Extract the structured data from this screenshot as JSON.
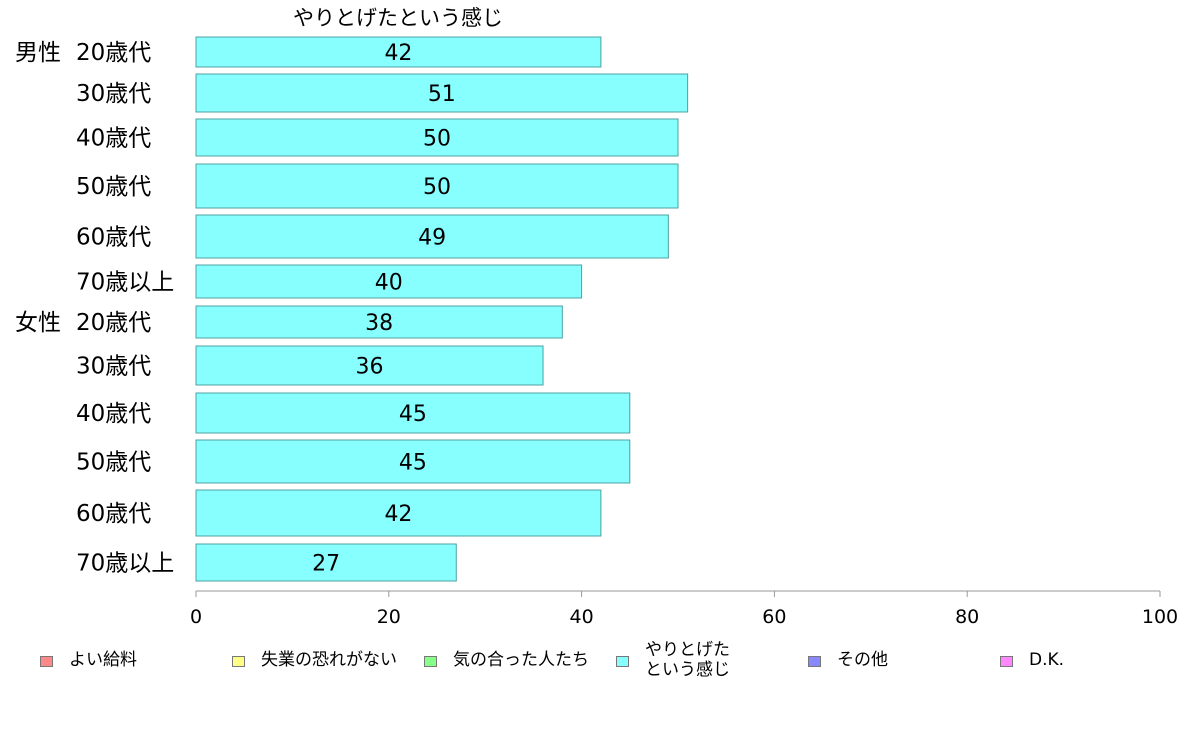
{
  "chart_data": {
    "type": "bar",
    "orientation": "horizontal",
    "title": "やりとげたという感じ",
    "groups": [
      {
        "label": "男性",
        "categories": [
          "20歳代",
          "30歳代",
          "40歳代",
          "50歳代",
          "60歳代",
          "70歳以上"
        ],
        "values": [
          42,
          51,
          50,
          50,
          49,
          40
        ]
      },
      {
        "label": "女性",
        "categories": [
          "20歳代",
          "30歳代",
          "40歳代",
          "50歳代",
          "60歳代",
          "70歳以上"
        ],
        "values": [
          38,
          36,
          45,
          45,
          42,
          27
        ]
      }
    ],
    "xlim": [
      0,
      100
    ],
    "xticks": [
      "0",
      "20",
      "40",
      "60",
      "80",
      "100"
    ],
    "bar_color": "#88ffff",
    "legend_placement": "bottom",
    "legend": [
      {
        "label": "よい給料",
        "color": "#ff8888"
      },
      {
        "label": "失業の恐れがない",
        "color": "#ffff88"
      },
      {
        "label": "気の合った人たち",
        "color": "#88ff88"
      },
      {
        "label": "やりとげた\nという感じ",
        "color": "#88ffff"
      },
      {
        "label": "その他",
        "color": "#8888ff"
      },
      {
        "label": "D.K.",
        "color": "#ff88ff"
      }
    ]
  }
}
